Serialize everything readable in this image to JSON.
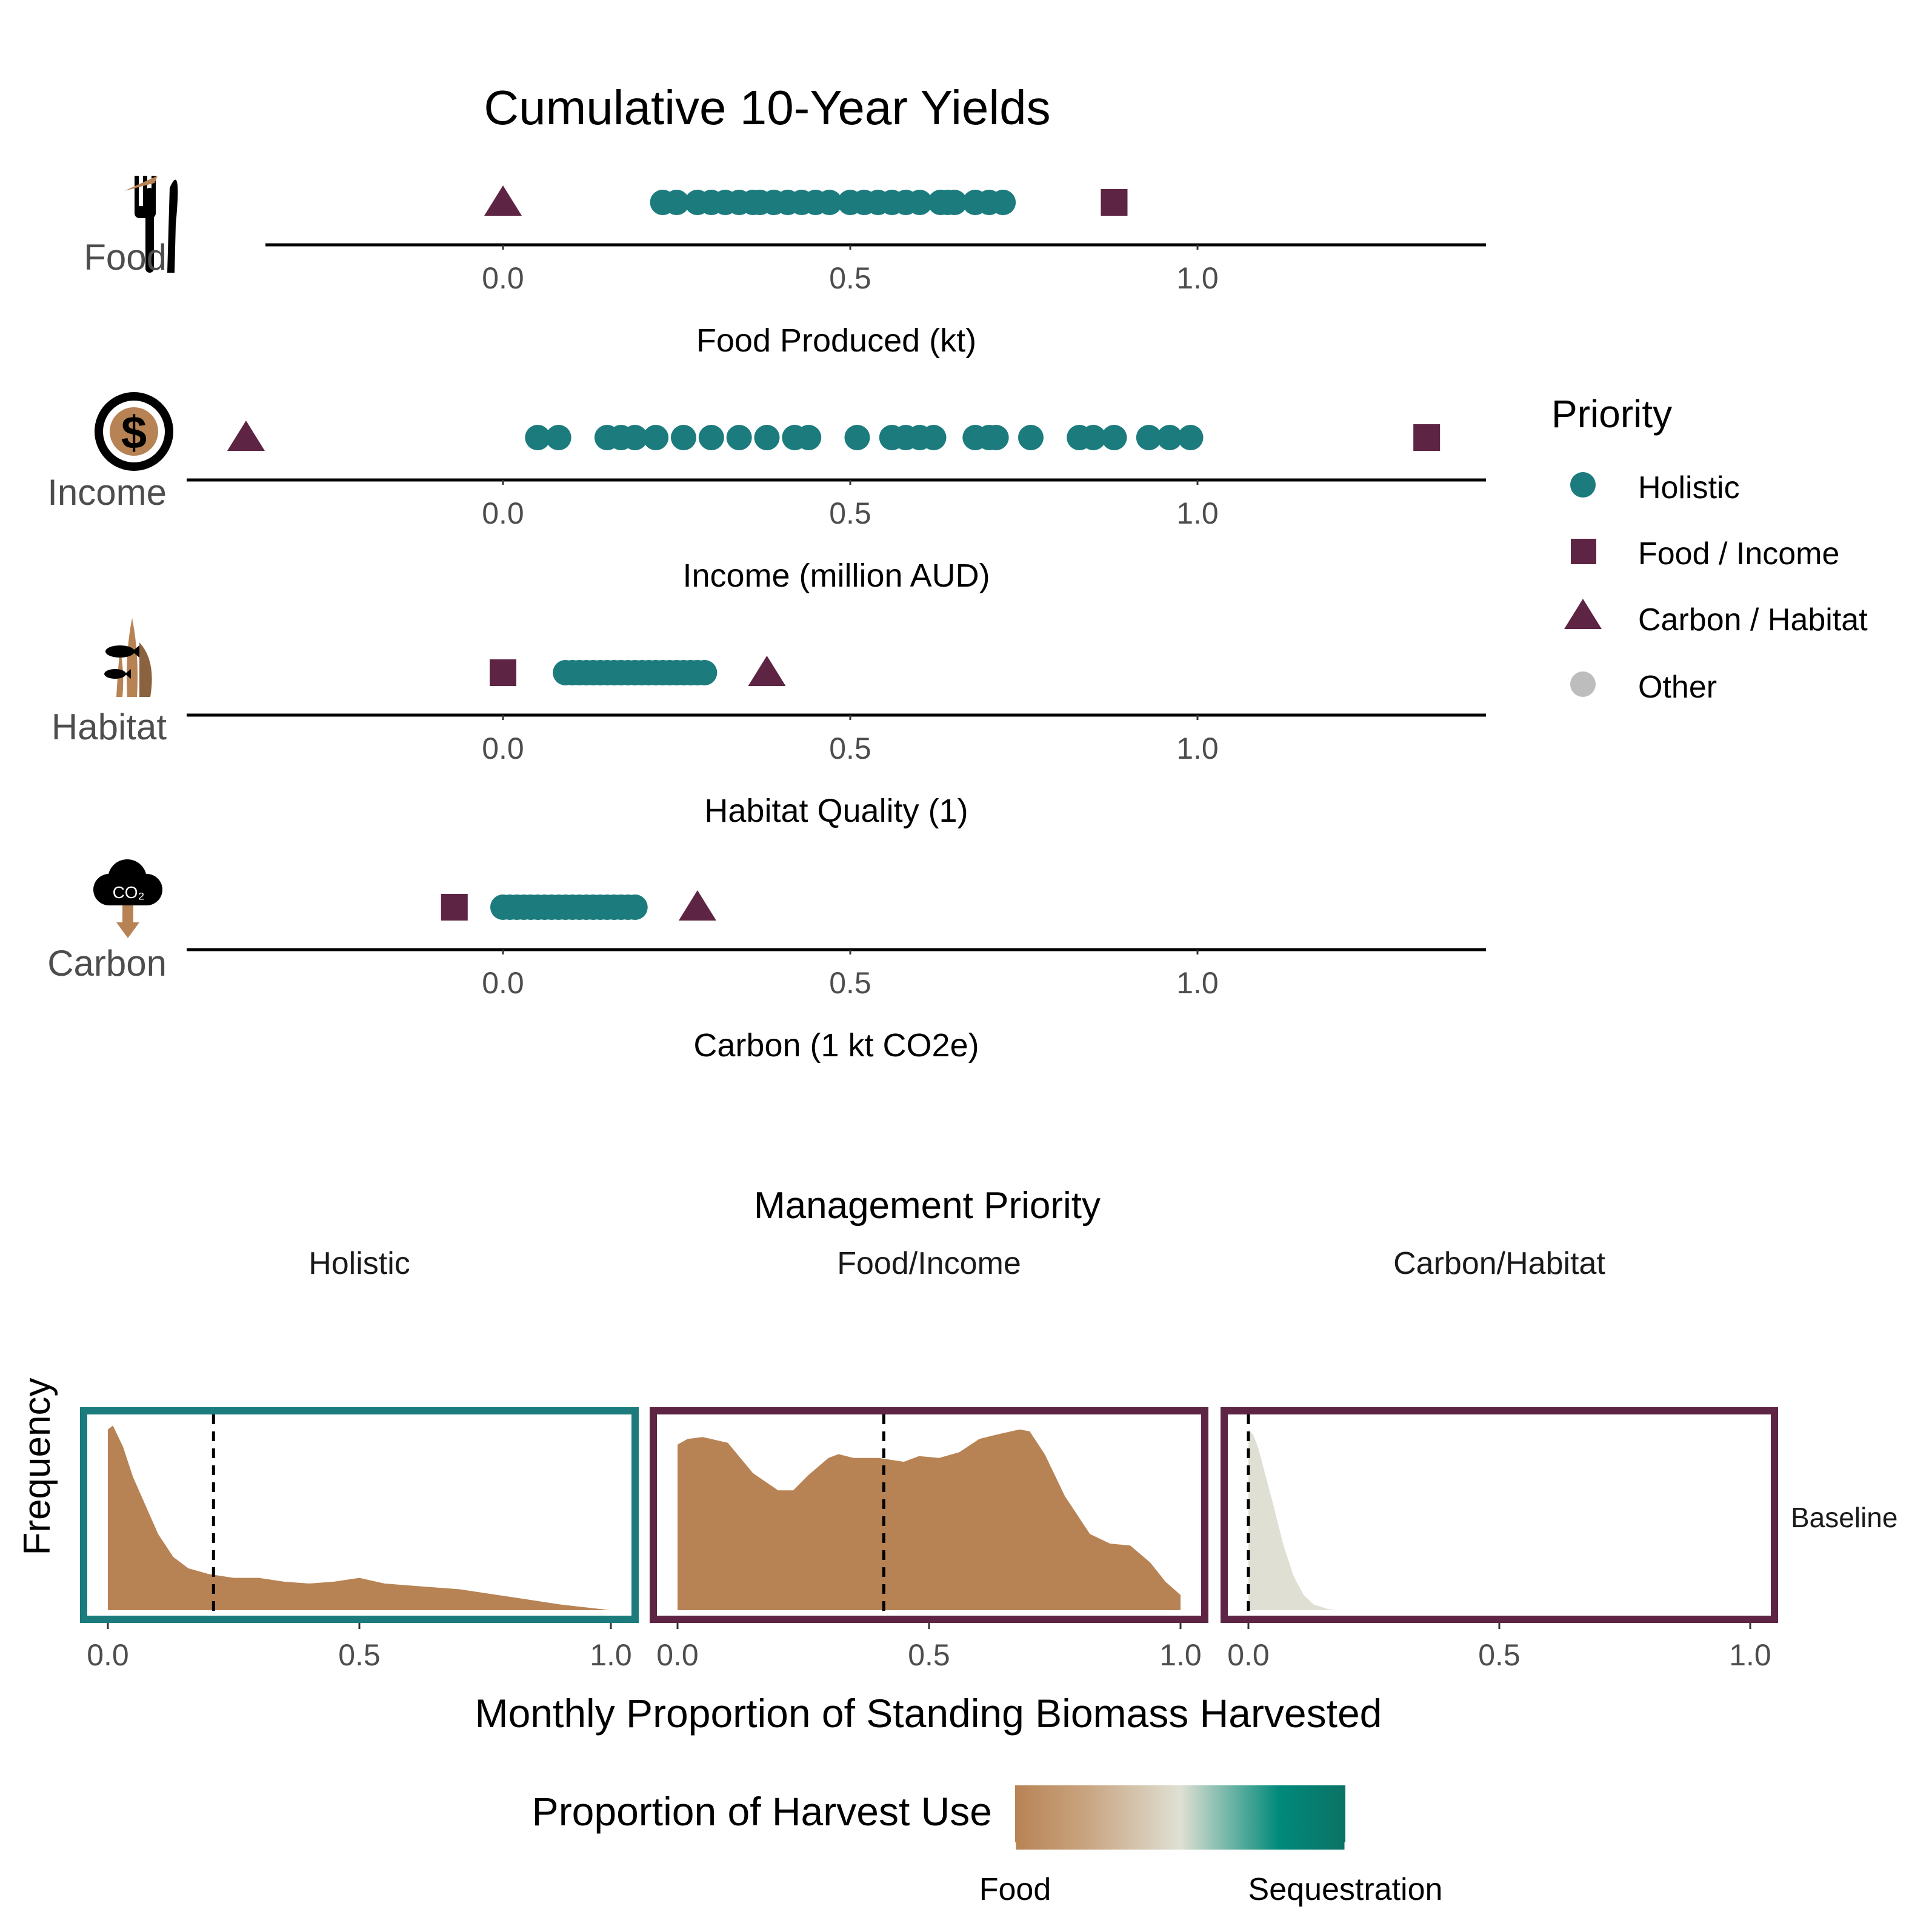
{
  "top_title": "Cumulative 10-Year Yields",
  "legend": {
    "title": "Priority",
    "items": [
      {
        "label": "Holistic",
        "shape": "circle",
        "color": "#1b7b7d"
      },
      {
        "label": "Food / Income",
        "shape": "square",
        "color": "#5e2443"
      },
      {
        "label": "Carbon / Habitat",
        "shape": "triangle",
        "color": "#5e2443"
      },
      {
        "label": "Other",
        "shape": "circle",
        "color": "#bdbdbd"
      }
    ]
  },
  "colors": {
    "holistic": "#1b7b7d",
    "priority": "#5e2443",
    "food": "#b88354",
    "sequestration": "#008a7a",
    "baseline_fill": "#dfe0d3",
    "axis": "#000000",
    "tick_text": "#4d4d4d"
  },
  "icons": [
    "fork-knife-icon",
    "dollar-coin-icon",
    "seagrass-fish-icon",
    "co2-cloud-icon"
  ],
  "chart_data": [
    {
      "type": "scatter",
      "row_label": "Food",
      "xlabel": "Food Produced (kt)",
      "ticks": [
        "0.0",
        "0.5",
        "1.0"
      ],
      "xlim": [
        -0.34,
        1.41
      ],
      "series": [
        {
          "name": "Holistic",
          "shape": "circle",
          "values": [
            0.23,
            0.25,
            0.28,
            0.3,
            0.32,
            0.34,
            0.36,
            0.37,
            0.39,
            0.41,
            0.43,
            0.45,
            0.47,
            0.5,
            0.52,
            0.54,
            0.56,
            0.58,
            0.6,
            0.63,
            0.64,
            0.65,
            0.68,
            0.7,
            0.72
          ]
        },
        {
          "name": "Food / Income",
          "shape": "square",
          "values": [
            0.88
          ]
        },
        {
          "name": "Carbon / Habitat",
          "shape": "triangle",
          "values": [
            0.0
          ]
        }
      ]
    },
    {
      "type": "scatter",
      "row_label": "Income",
      "xlabel": "Income (million AUD)",
      "ticks": [
        "0.0",
        "0.5",
        "1.0"
      ],
      "xlim": [
        -0.46,
        1.41
      ],
      "series": [
        {
          "name": "Holistic",
          "shape": "circle",
          "values": [
            0.05,
            0.08,
            0.15,
            0.17,
            0.19,
            0.22,
            0.26,
            0.3,
            0.34,
            0.38,
            0.42,
            0.44,
            0.51,
            0.56,
            0.58,
            0.6,
            0.62,
            0.68,
            0.7,
            0.71,
            0.76,
            0.83,
            0.85,
            0.88,
            0.93,
            0.96,
            0.99
          ]
        },
        {
          "name": "Food / Income",
          "shape": "square",
          "values": [
            1.33
          ]
        },
        {
          "name": "Carbon / Habitat",
          "shape": "triangle",
          "values": [
            -0.37
          ]
        }
      ]
    },
    {
      "type": "scatter",
      "row_label": "Habitat",
      "xlabel": "Habitat Quality (1)",
      "ticks": [
        "0.0",
        "0.5",
        "1.0"
      ],
      "xlim": [
        -0.46,
        1.41
      ],
      "series": [
        {
          "name": "Holistic",
          "shape": "circle",
          "values": [
            0.09,
            0.1,
            0.11,
            0.12,
            0.13,
            0.14,
            0.15,
            0.16,
            0.17,
            0.18,
            0.19,
            0.2,
            0.21,
            0.22,
            0.23,
            0.24,
            0.25,
            0.26,
            0.27,
            0.28,
            0.29
          ]
        },
        {
          "name": "Food / Income",
          "shape": "square",
          "values": [
            0.0
          ]
        },
        {
          "name": "Carbon / Habitat",
          "shape": "triangle",
          "values": [
            0.38
          ]
        }
      ]
    },
    {
      "type": "scatter",
      "row_label": "Carbon",
      "xlabel": "Carbon (1 kt CO2e)",
      "ticks": [
        "0.0",
        "0.5",
        "1.0"
      ],
      "xlim": [
        -0.46,
        1.41
      ],
      "series": [
        {
          "name": "Holistic",
          "shape": "circle",
          "values": [
            0.0,
            0.01,
            0.02,
            0.03,
            0.04,
            0.05,
            0.06,
            0.07,
            0.08,
            0.09,
            0.1,
            0.11,
            0.12,
            0.13,
            0.14,
            0.15,
            0.16,
            0.17,
            0.18,
            0.19
          ]
        },
        {
          "name": "Food / Income",
          "shape": "square",
          "values": [
            -0.07
          ]
        },
        {
          "name": "Carbon / Habitat",
          "shape": "triangle",
          "values": [
            0.28
          ]
        }
      ]
    },
    {
      "type": "area",
      "title": "Management Priority",
      "xlabel": "Monthly Proportion of Standing Biomass Harvested",
      "ylabel": "Frequency",
      "strip_label": "Baseline",
      "xlim": [
        -0.05,
        1.05
      ],
      "ticks": [
        "0.0",
        "0.5",
        "1.0"
      ],
      "panels": [
        {
          "name": "Holistic",
          "border": "#1b7b7d",
          "fill": "#b88354",
          "median": 0.21,
          "x": [
            0,
            0.01,
            0.03,
            0.05,
            0.08,
            0.1,
            0.13,
            0.16,
            0.2,
            0.25,
            0.3,
            0.35,
            0.4,
            0.45,
            0.5,
            0.55,
            0.6,
            0.7,
            0.8,
            0.9,
            1.0
          ],
          "y": [
            0.95,
            0.97,
            0.86,
            0.7,
            0.52,
            0.4,
            0.28,
            0.22,
            0.19,
            0.17,
            0.17,
            0.15,
            0.14,
            0.15,
            0.17,
            0.14,
            0.13,
            0.11,
            0.07,
            0.03,
            0.0
          ]
        },
        {
          "name": "Food/Income",
          "border": "#5e2443",
          "fill": "#b88354",
          "median": 0.41,
          "x": [
            0,
            0.02,
            0.05,
            0.1,
            0.15,
            0.2,
            0.23,
            0.26,
            0.3,
            0.32,
            0.35,
            0.4,
            0.45,
            0.48,
            0.52,
            0.56,
            0.6,
            0.63,
            0.68,
            0.7,
            0.73,
            0.77,
            0.82,
            0.86,
            0.9,
            0.94,
            0.97,
            1.0
          ],
          "y": [
            0.87,
            0.9,
            0.91,
            0.88,
            0.72,
            0.63,
            0.63,
            0.71,
            0.8,
            0.82,
            0.8,
            0.8,
            0.78,
            0.81,
            0.8,
            0.83,
            0.9,
            0.92,
            0.95,
            0.94,
            0.82,
            0.6,
            0.4,
            0.35,
            0.34,
            0.25,
            0.15,
            0.08
          ]
        },
        {
          "name": "Carbon/Habitat",
          "border": "#5e2443",
          "fill": "#dfe0d3",
          "median": 0.0,
          "x": [
            0,
            0.01,
            0.02,
            0.03,
            0.05,
            0.07,
            0.09,
            0.11,
            0.13,
            0.16,
            0.18
          ],
          "y": [
            0.95,
            0.92,
            0.85,
            0.75,
            0.55,
            0.34,
            0.18,
            0.08,
            0.03,
            0.005,
            0.0
          ]
        }
      ]
    }
  ],
  "colorbar": {
    "title": "Proportion of Harvest Use",
    "low_label": "Food",
    "high_label": "Sequestration"
  }
}
